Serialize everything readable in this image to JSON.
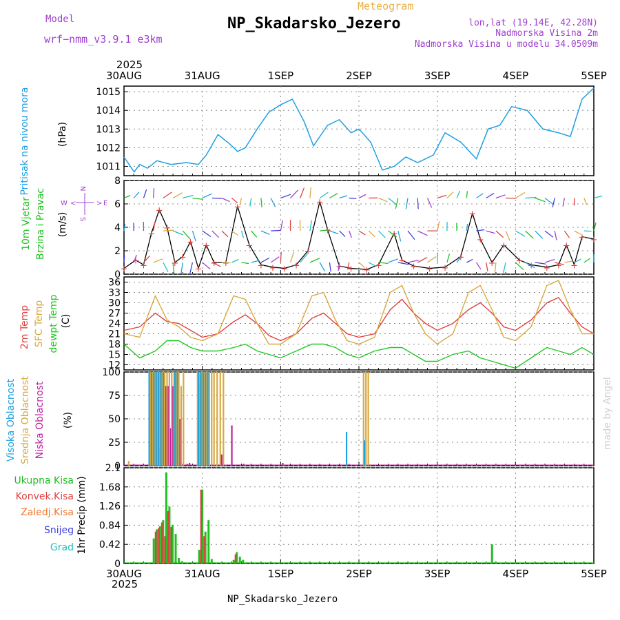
{
  "header": {
    "model_label": "Model",
    "model_name": "wrf−nmm_v3.9.1 e3km",
    "meteogram_label": "Meteogram",
    "station": "NP_Skadarsko_Jezero",
    "lonlat": "lon,lat (19.14E, 42.28N)",
    "altitude": "Nadmorska Visina 2m",
    "model_altitude": "Nadmorska Visina u modelu 34.0509m",
    "credit": "made by Angel"
  },
  "footer": {
    "station": "NP_Skadarsko_Jezero"
  },
  "colors": {
    "pressure": "#1ea0e0",
    "wind10": "#20c020",
    "temp2m": "#e04040",
    "sfctemp": "#d8a840",
    "dewpt": "#20c820",
    "high_cloud": "#1ea0e0",
    "mid_cloud": "#d8a840",
    "low_cloud": "#c020a0",
    "precip_total": "#20c020",
    "precip_conv": "#e04040",
    "precip_frozen": "#f07830",
    "snow": "#4040e0",
    "hail": "#20c0c0",
    "compass": "#a040d0"
  },
  "time_axis": {
    "year": "2025",
    "labels": [
      "30AUG",
      "31AUG",
      "1SEP",
      "2SEP",
      "3SEP",
      "4SEP",
      "5SEP"
    ]
  },
  "chart_data": [
    {
      "type": "line",
      "id": "pressure",
      "title": "Pritisak na nivou mora",
      "ylabel": "(hPa)",
      "ylim": [
        1010.5,
        1015.3
      ],
      "yticks": [
        1011,
        1012,
        1013,
        1014,
        1015
      ],
      "x_days": [
        0,
        0.13,
        0.2,
        0.3,
        0.42,
        0.6,
        0.8,
        0.95,
        1.05,
        1.2,
        1.35,
        1.45,
        1.55,
        1.7,
        1.85,
        2.0,
        2.15,
        2.3,
        2.42,
        2.6,
        2.75,
        2.9,
        3.0,
        3.15,
        3.3,
        3.45,
        3.6,
        3.75,
        3.95,
        4.1,
        4.3,
        4.5,
        4.65,
        4.8,
        4.95,
        5.15,
        5.35,
        5.55,
        5.7,
        5.85,
        6.0
      ],
      "values": [
        1011.5,
        1010.7,
        1011.1,
        1010.9,
        1011.3,
        1011.1,
        1011.2,
        1011.1,
        1011.6,
        1012.7,
        1012.2,
        1011.8,
        1012.0,
        1013.0,
        1013.9,
        1014.3,
        1014.6,
        1013.4,
        1012.1,
        1013.2,
        1013.5,
        1012.8,
        1013.0,
        1012.3,
        1010.8,
        1011.0,
        1011.5,
        1011.2,
        1011.6,
        1012.8,
        1012.3,
        1011.4,
        1013.0,
        1013.2,
        1014.2,
        1014.0,
        1013.0,
        1012.8,
        1012.6,
        1014.6,
        1015.2
      ]
    },
    {
      "type": "line",
      "id": "wind",
      "title": "10m Vjetar",
      "subtitle": "Brzina i Pravac",
      "ylabel": "(m/s)",
      "ylim": [
        0,
        8
      ],
      "yticks": [
        0,
        2,
        4,
        6,
        8
      ],
      "compass": {
        "n": "N",
        "s": "S",
        "w": "W",
        "e": "E"
      },
      "x_days": [
        0,
        0.15,
        0.25,
        0.35,
        0.45,
        0.55,
        0.65,
        0.75,
        0.85,
        0.95,
        1.05,
        1.15,
        1.3,
        1.45,
        1.6,
        1.75,
        1.9,
        2.05,
        2.2,
        2.35,
        2.5,
        2.6,
        2.75,
        2.9,
        3.1,
        3.25,
        3.45,
        3.55,
        3.7,
        3.9,
        4.1,
        4.3,
        4.45,
        4.55,
        4.7,
        4.85,
        5.05,
        5.2,
        5.4,
        5.55,
        5.65,
        5.75,
        5.85,
        6.0
      ],
      "values": [
        0.5,
        1.2,
        0.8,
        3.5,
        5.5,
        4.0,
        1.0,
        1.5,
        2.8,
        0.5,
        2.5,
        1.0,
        1.0,
        5.8,
        2.5,
        0.8,
        0.6,
        0.5,
        0.8,
        2.0,
        6.2,
        3.8,
        0.7,
        0.5,
        0.4,
        0.8,
        3.5,
        1.2,
        0.7,
        0.5,
        0.6,
        1.5,
        5.2,
        3.0,
        1.0,
        2.5,
        1.2,
        0.8,
        0.6,
        0.8,
        2.5,
        0.8,
        3.2,
        3.0
      ]
    },
    {
      "type": "line",
      "id": "temperature",
      "title": "2m Temp",
      "title2": "SFC Temp",
      "title3": "dewpt Temp",
      "ylabel": "(C)",
      "ylim": [
        10.5,
        37.5
      ],
      "yticks": [
        12,
        15,
        18,
        21,
        24,
        27,
        30,
        33,
        36
      ],
      "x_days": [
        0,
        0.2,
        0.4,
        0.55,
        0.7,
        0.85,
        1.0,
        1.2,
        1.4,
        1.55,
        1.7,
        1.85,
        2.0,
        2.2,
        2.4,
        2.55,
        2.7,
        2.85,
        3.0,
        3.2,
        3.4,
        3.55,
        3.7,
        3.85,
        4.0,
        4.2,
        4.4,
        4.55,
        4.7,
        4.85,
        5.0,
        5.2,
        5.4,
        5.55,
        5.7,
        5.85,
        6.0
      ],
      "series": [
        {
          "name": "2m Temp",
          "values": [
            22,
            23,
            27,
            24.5,
            24,
            22,
            20,
            21,
            24.5,
            26.5,
            24,
            20.5,
            19,
            21,
            25.5,
            27,
            24,
            21,
            20,
            21,
            28,
            31,
            27,
            24,
            22,
            24,
            28,
            30,
            27,
            23,
            22,
            25,
            30,
            31.5,
            27,
            23,
            21
          ]
        },
        {
          "name": "SFC Temp",
          "values": [
            21,
            20,
            32,
            25,
            23,
            20,
            19,
            21,
            32,
            31,
            24,
            18,
            18,
            21,
            32,
            33,
            25,
            19,
            18,
            20,
            33,
            35,
            27,
            21,
            18,
            21,
            33,
            35,
            28,
            20,
            19,
            23,
            35,
            36.5,
            28,
            21,
            21
          ]
        },
        {
          "name": "dewpt Temp",
          "values": [
            18,
            14,
            16,
            19,
            19,
            17,
            16,
            16,
            17,
            18,
            16,
            15,
            14,
            16,
            18,
            18,
            17,
            15,
            14,
            16,
            17,
            17,
            15,
            13,
            13,
            15,
            16,
            14,
            13,
            12,
            11,
            14,
            17,
            16,
            15,
            17,
            15
          ]
        }
      ]
    },
    {
      "type": "bar",
      "id": "cloud",
      "title": "Visoka Oblacnost",
      "title2": "Srednja Oblacnost",
      "title3": "Niska Oblacnost",
      "ylabel": "(%)",
      "ylim": [
        0,
        100
      ],
      "yticks": [
        0,
        25,
        50,
        75,
        100
      ],
      "x_days": [
        0.05,
        0.3,
        0.33,
        0.36,
        0.39,
        0.42,
        0.45,
        0.48,
        0.51,
        0.54,
        0.57,
        0.6,
        0.63,
        0.66,
        0.69,
        0.72,
        0.75,
        0.78,
        0.81,
        0.84,
        0.87,
        0.9,
        0.93,
        0.96,
        0.99,
        1.02,
        1.05,
        1.08,
        1.11,
        1.14,
        1.18,
        1.22,
        1.26,
        1.35,
        1.5,
        1.65,
        1.8,
        2.0,
        2.3,
        2.6,
        2.85,
        3.05,
        3.08,
        3.11,
        3.4,
        3.7,
        4.0,
        4.4,
        4.8,
        5.2,
        5.6,
        6.0
      ],
      "series": [
        {
          "name": "Visoka Oblacnost",
          "values": [
            0,
            0,
            100,
            100,
            100,
            100,
            100,
            100,
            100,
            0,
            0,
            0,
            0,
            100,
            100,
            0,
            0,
            0,
            0,
            0,
            0,
            0,
            0,
            100,
            100,
            100,
            100,
            100,
            0,
            0,
            0,
            0,
            0,
            0,
            0,
            0,
            0,
            0,
            0,
            0,
            36,
            0,
            27,
            0,
            0,
            0,
            0,
            0,
            0,
            0,
            0,
            0
          ]
        },
        {
          "name": "Srednja Oblacnost",
          "values": [
            5,
            0,
            100,
            100,
            100,
            100,
            100,
            100,
            100,
            100,
            100,
            100,
            100,
            100,
            100,
            85,
            100,
            0,
            0,
            0,
            0,
            0,
            100,
            100,
            100,
            100,
            100,
            100,
            100,
            100,
            100,
            100,
            100,
            0,
            0,
            0,
            0,
            0,
            0,
            0,
            0,
            100,
            100,
            100,
            0,
            0,
            0,
            0,
            0,
            0,
            0,
            0
          ]
        },
        {
          "name": "Niska Oblacnost",
          "values": [
            0,
            0,
            95,
            98,
            35,
            20,
            60,
            98,
            85,
            85,
            40,
            85,
            85,
            85,
            50,
            0,
            0,
            2,
            3,
            0,
            0,
            0,
            88,
            95,
            65,
            95,
            62,
            0,
            0,
            0,
            0,
            12,
            0,
            43,
            2,
            0,
            1,
            3,
            0,
            0,
            0,
            0,
            0,
            0,
            0,
            0,
            0,
            0,
            0,
            0,
            0,
            0
          ]
        }
      ]
    },
    {
      "type": "bar",
      "id": "precip",
      "title": "Ukupna Kisa",
      "title2": "Konvek.Kisa",
      "title3": "Zaledj.Kisa",
      "title4": "Snijeg",
      "title5": "Grad",
      "ylabel": "1hr Precip (mm)",
      "ylim": [
        0,
        2.1
      ],
      "yticks": [
        0,
        0.42,
        0.84,
        1.26,
        1.68,
        2.1
      ],
      "x_days": [
        0.38,
        0.42,
        0.46,
        0.5,
        0.54,
        0.58,
        0.62,
        0.66,
        0.7,
        0.74,
        0.96,
        1.0,
        1.04,
        1.08,
        1.12,
        1.4,
        1.44,
        1.48,
        1.52,
        1.56,
        4.7
      ],
      "series": [
        {
          "name": "Ukupna Kisa",
          "values": [
            0.55,
            0.75,
            0.82,
            0.95,
            2.0,
            1.25,
            0.85,
            0.65,
            0.12,
            0.05,
            0.3,
            1.62,
            0.7,
            0.95,
            0.1,
            0.08,
            0.25,
            0.15,
            0.08,
            0.02,
            0.42
          ]
        },
        {
          "name": "Konvek.Kisa",
          "values": [
            0,
            0.7,
            0.78,
            0.9,
            0.6,
            1.15,
            0.8,
            0,
            0,
            0,
            0,
            1.62,
            0.6,
            0,
            0,
            0,
            0.2,
            0,
            0,
            0,
            0
          ]
        }
      ]
    }
  ]
}
